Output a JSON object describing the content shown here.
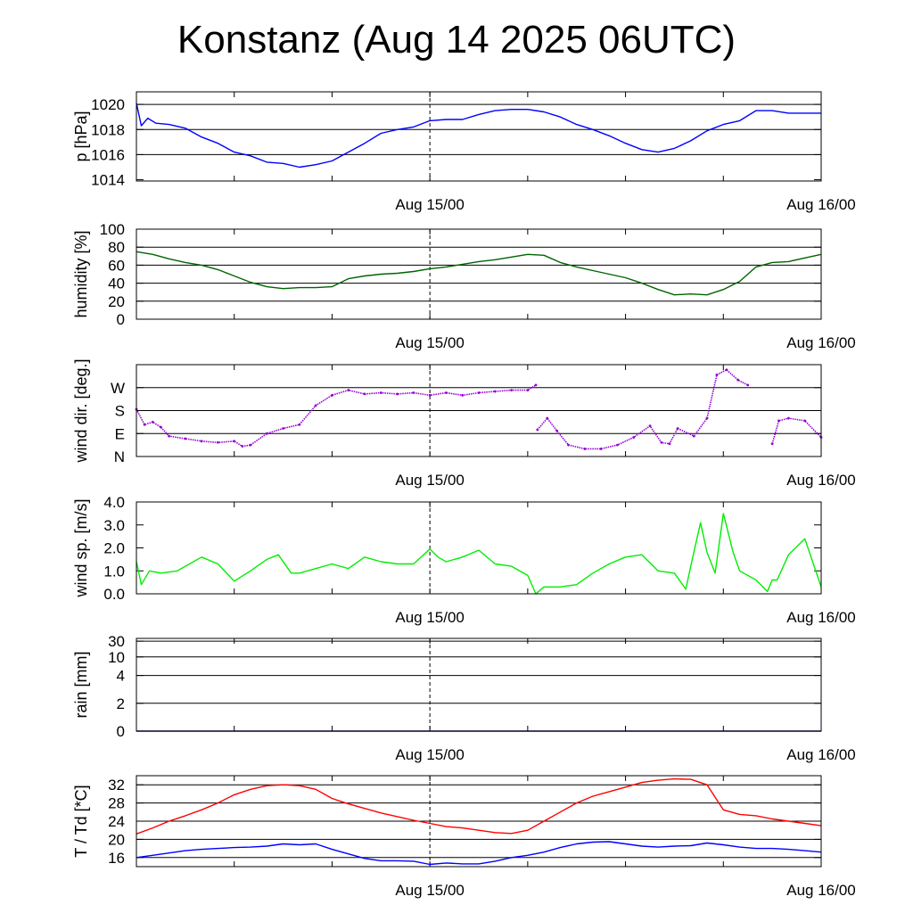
{
  "title": "Konstanz (Aug 14 2025 06UTC)",
  "x_axis": {
    "start_hours": 0,
    "end_hours": 42,
    "labels": [
      {
        "hour": 18,
        "text": "Aug 15/00"
      },
      {
        "hour": 42,
        "text": "Aug 16/00"
      }
    ]
  },
  "colors": {
    "pressure": "#0000ff",
    "humidity": "#006400",
    "wind_dir": "#9400d3",
    "wind_speed": "#00ee00",
    "rain": "#00008b",
    "temperature": "#ff0000",
    "dewpoint": "#0000ff"
  },
  "chart_data": [
    {
      "type": "line",
      "id": "pressure",
      "ylabel": "p [hPa]",
      "ylim": [
        1013.9,
        1021
      ],
      "ticks": [
        1014,
        1016,
        1018,
        1020
      ],
      "tick_labels": [
        "1014",
        "1016",
        "1018",
        "1020"
      ],
      "grid": [
        1016,
        1018,
        1020
      ],
      "series": [
        {
          "color_key": "pressure",
          "x": [
            0,
            0.3,
            0.7,
            1.2,
            2,
            3,
            4,
            5,
            6,
            7,
            8,
            9,
            10,
            11,
            12,
            13,
            14,
            15,
            16,
            17,
            18,
            19,
            20,
            21,
            22,
            23,
            24,
            25,
            26,
            27,
            28,
            29,
            30,
            31,
            32,
            33,
            34,
            35,
            36,
            37,
            38,
            39,
            40,
            41,
            42
          ],
          "y": [
            1020.1,
            1018.3,
            1018.9,
            1018.5,
            1018.4,
            1018.1,
            1017.4,
            1016.9,
            1016.2,
            1015.9,
            1015.4,
            1015.3,
            1015.0,
            1015.2,
            1015.5,
            1016.2,
            1016.9,
            1017.7,
            1018.0,
            1018.2,
            1018.7,
            1018.8,
            1018.8,
            1019.2,
            1019.5,
            1019.6,
            1019.6,
            1019.4,
            1019.0,
            1018.4,
            1018.0,
            1017.5,
            1016.9,
            1016.4,
            1016.2,
            1016.5,
            1017.1,
            1017.9,
            1018.4,
            1018.7,
            1019.5,
            1019.5,
            1019.3,
            1019.3,
            1019.3
          ]
        }
      ]
    },
    {
      "type": "line",
      "id": "humidity",
      "ylabel": "humidity [%]",
      "ylim": [
        0,
        100
      ],
      "ticks": [
        0,
        20,
        40,
        60,
        80,
        100
      ],
      "tick_labels": [
        "0",
        "20",
        "40",
        "60",
        "80",
        "100"
      ],
      "grid": [
        20,
        40,
        60,
        80
      ],
      "series": [
        {
          "color_key": "humidity",
          "x": [
            0,
            1,
            2,
            3,
            4,
            5,
            6,
            7,
            8,
            9,
            10,
            11,
            12,
            13,
            14,
            15,
            16,
            17,
            18,
            19,
            20,
            21,
            22,
            23,
            24,
            25,
            26,
            27,
            28,
            29,
            30,
            31,
            32,
            33,
            34,
            35,
            36,
            37,
            38,
            39,
            40,
            41,
            42
          ],
          "y": [
            75,
            72,
            67,
            63,
            60,
            55,
            48,
            41,
            36,
            34,
            35,
            35,
            36,
            45,
            48,
            50,
            51,
            53,
            56,
            58,
            61,
            64,
            66,
            69,
            72,
            71,
            63,
            58,
            54,
            50,
            46,
            40,
            33,
            27,
            28,
            27,
            33,
            42,
            58,
            63,
            64,
            68,
            72
          ]
        }
      ]
    },
    {
      "type": "scatter",
      "id": "wind_dir",
      "ylabel": "wind dir. [deg.]",
      "ylim": [
        0,
        360
      ],
      "ticks": [
        0,
        90,
        180,
        270
      ],
      "tick_labels": [
        "N",
        "E",
        "S",
        "W"
      ],
      "grid": [
        90,
        180,
        270
      ],
      "series": [
        {
          "color_key": "wind_dir",
          "x": [
            0,
            0.5,
            1,
            1.5,
            2,
            3,
            4,
            5,
            6,
            6.5,
            7,
            8,
            9,
            10,
            11,
            12,
            13,
            14,
            15,
            16,
            17,
            18,
            19,
            20,
            21,
            22,
            23,
            24,
            24.5
          ],
          "y": [
            185,
            125,
            135,
            115,
            80,
            70,
            60,
            55,
            60,
            40,
            45,
            90,
            110,
            125,
            200,
            240,
            260,
            245,
            250,
            245,
            250,
            240,
            250,
            240,
            250,
            255,
            260,
            260,
            280
          ]
        },
        {
          "color_key": "wind_dir",
          "x": [
            24.6,
            25.2,
            25.8,
            26.5,
            27.5,
            28.5,
            29.5,
            30.5,
            31.5,
            32.2,
            32.7,
            33.2,
            34.2,
            35,
            35.6,
            36.2,
            36.9,
            37.5
          ],
          "y": [
            105,
            150,
            100,
            45,
            30,
            30,
            45,
            75,
            120,
            55,
            50,
            110,
            80,
            150,
            320,
            340,
            300,
            280
          ]
        },
        {
          "color_key": "wind_dir",
          "x": [
            39,
            39.4,
            40,
            41,
            42
          ],
          "y": [
            50,
            140,
            150,
            140,
            75
          ]
        }
      ]
    },
    {
      "type": "line",
      "id": "wind_speed",
      "ylabel": "wind sp. [m/s]",
      "ylim": [
        0,
        4
      ],
      "ticks": [
        0,
        1,
        2,
        3,
        4
      ],
      "tick_labels": [
        "0.0",
        "1.0",
        "2.0",
        "3.0",
        "4.0"
      ],
      "grid": [],
      "series": [
        {
          "color_key": "wind_speed",
          "x": [
            0,
            0.3,
            0.8,
            1.5,
            2.5,
            3,
            4,
            5,
            6,
            7,
            8,
            8.7,
            9.5,
            10,
            11,
            12,
            13,
            14,
            15,
            16,
            17,
            18,
            18.5,
            19,
            20,
            21,
            22,
            23,
            24,
            24.5,
            25,
            26,
            27,
            28,
            29,
            30,
            31,
            32,
            33,
            33.7,
            34,
            34.6,
            35,
            35.5,
            36,
            36.6,
            37,
            38,
            38.7,
            39,
            39.3,
            40,
            41,
            42
          ],
          "y": [
            1.4,
            0.4,
            1.0,
            0.9,
            1.0,
            1.2,
            1.6,
            1.3,
            0.55,
            1.0,
            1.5,
            1.7,
            0.9,
            0.9,
            1.1,
            1.3,
            1.1,
            1.6,
            1.4,
            1.3,
            1.3,
            1.95,
            1.6,
            1.4,
            1.6,
            1.9,
            1.3,
            1.2,
            0.8,
            0.0,
            0.3,
            0.3,
            0.4,
            0.9,
            1.3,
            1.6,
            1.7,
            1.0,
            0.9,
            0.2,
            1.2,
            3.1,
            1.8,
            0.9,
            3.5,
            1.8,
            1.0,
            0.6,
            0.1,
            0.6,
            0.6,
            1.7,
            2.4,
            0.3
          ]
        }
      ]
    },
    {
      "type": "line",
      "id": "rain",
      "ylabel": "rain [mm]",
      "ylim": [
        0,
        30
      ],
      "ticks": [
        0,
        2,
        4,
        10,
        30
      ],
      "tick_labels": [
        "0",
        "2",
        "4",
        "10",
        "30"
      ],
      "grid": [
        2,
        4,
        10,
        30
      ],
      "scale": "custom",
      "series": [
        {
          "color_key": "rain",
          "x": [
            0,
            42
          ],
          "y": [
            0,
            0
          ]
        }
      ]
    },
    {
      "type": "line",
      "id": "temperature",
      "ylabel": "T / Td [*C]",
      "ylim": [
        14,
        34
      ],
      "ticks": [
        16,
        20,
        24,
        28,
        32
      ],
      "tick_labels": [
        "16",
        "20",
        "24",
        "28",
        "32"
      ],
      "grid": [
        16,
        20,
        24,
        28,
        32
      ],
      "series": [
        {
          "name": "T",
          "color_key": "temperature",
          "x": [
            0,
            1,
            2,
            3,
            4,
            5,
            6,
            7,
            8,
            9,
            10,
            11,
            12,
            13,
            14,
            15,
            16,
            17,
            18,
            19,
            20,
            21,
            22,
            23,
            24,
            25,
            26,
            27,
            28,
            29,
            30,
            31,
            32,
            33,
            34,
            35,
            36,
            37,
            38,
            39,
            40,
            41,
            42
          ],
          "y": [
            21.2,
            22.5,
            24.0,
            25.2,
            26.5,
            28.0,
            29.8,
            31.0,
            31.8,
            32.0,
            31.8,
            31.0,
            29.0,
            27.8,
            26.8,
            25.8,
            25.0,
            24.2,
            23.5,
            22.8,
            22.5,
            22.0,
            21.5,
            21.3,
            22.0,
            24.0,
            26.0,
            28.0,
            29.5,
            30.5,
            31.5,
            32.5,
            33.0,
            33.3,
            33.2,
            32.0,
            26.5,
            25.5,
            25.2,
            24.5,
            24.0,
            23.5,
            23.0
          ]
        },
        {
          "name": "Td",
          "color_key": "dewpoint",
          "x": [
            0,
            1,
            2,
            3,
            4,
            5,
            6,
            7,
            8,
            9,
            10,
            11,
            12,
            13,
            14,
            15,
            16,
            17,
            18,
            19,
            20,
            21,
            22,
            23,
            24,
            25,
            26,
            27,
            28,
            29,
            30,
            31,
            32,
            33,
            34,
            35,
            36,
            37,
            38,
            39,
            40,
            41,
            42
          ],
          "y": [
            16.0,
            16.5,
            17.0,
            17.5,
            17.8,
            18.0,
            18.2,
            18.3,
            18.5,
            19.0,
            18.8,
            19.0,
            17.8,
            16.8,
            15.8,
            15.3,
            15.3,
            15.2,
            14.5,
            14.8,
            14.6,
            14.6,
            15.2,
            16.0,
            16.5,
            17.2,
            18.2,
            19.0,
            19.4,
            19.5,
            19.0,
            18.5,
            18.3,
            18.5,
            18.6,
            19.2,
            18.8,
            18.3,
            18.0,
            18.0,
            17.8,
            17.5,
            17.2
          ]
        }
      ]
    }
  ]
}
